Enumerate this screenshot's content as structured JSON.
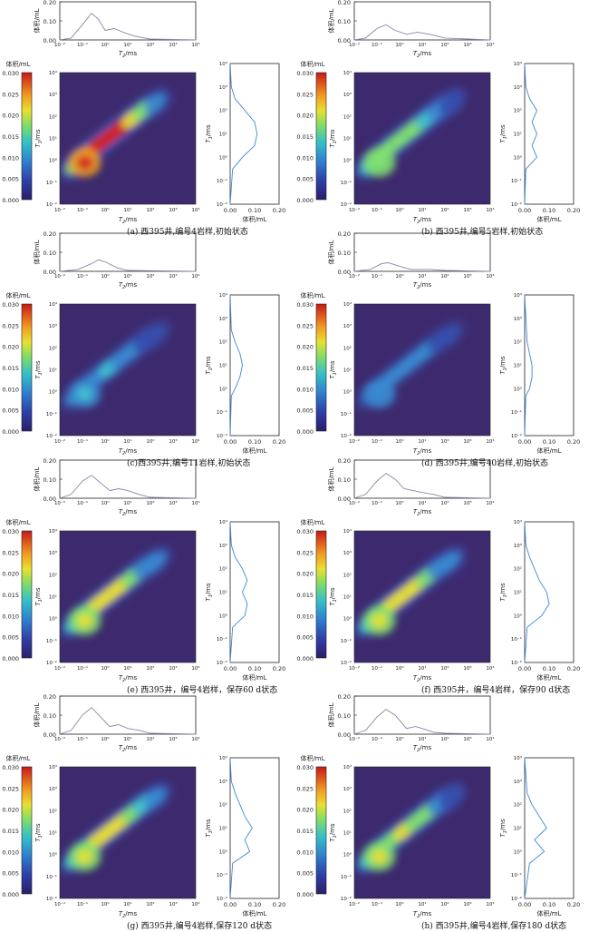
{
  "colorbar": {
    "title": "体积/mL",
    "ticks": [
      "0.030",
      "0.025",
      "0.020",
      "0.015",
      "0.010",
      "0.005",
      "0.000"
    ]
  },
  "axes": {
    "t2_label": "T",
    "t2_sub": "2",
    "t1_label": "T",
    "t1_sub": "1",
    "unit": "/ms",
    "volume_label": "体积/mL",
    "log_ticks": [
      "10⁻²",
      "10⁻¹",
      "10⁰",
      "10¹",
      "10²",
      "10³",
      "10⁴"
    ],
    "side_ticks": [
      "0.00",
      "0.10",
      "0.20"
    ],
    "top_ticks": [
      "0.00",
      "0.10",
      "0.20"
    ]
  },
  "chart_data": [
    {
      "type": "heatmap",
      "caption": "(a) 西395井,编号4岩样,初始状态",
      "intensity": 1.0,
      "t2_distribution": [
        [
          -2,
          0
        ],
        [
          -1.5,
          0.01
        ],
        [
          -1,
          0.08
        ],
        [
          -0.6,
          0.14
        ],
        [
          -0.3,
          0.11
        ],
        [
          0,
          0.05
        ],
        [
          0.4,
          0.06
        ],
        [
          0.8,
          0.04
        ],
        [
          1.3,
          0.02
        ],
        [
          2,
          0.005
        ],
        [
          4,
          0
        ]
      ],
      "t1_distribution": [
        [
          -2,
          0
        ],
        [
          -0.5,
          0.01
        ],
        [
          0,
          0.05
        ],
        [
          0.5,
          0.1
        ],
        [
          1,
          0.11
        ],
        [
          1.5,
          0.1
        ],
        [
          2,
          0.06
        ],
        [
          2.5,
          0.02
        ],
        [
          3,
          0.005
        ],
        [
          4,
          0
        ]
      ]
    },
    {
      "type": "heatmap",
      "caption": "(b) 西395井,编号5岩样,初始状态",
      "intensity": 0.55,
      "t2_distribution": [
        [
          -2,
          0
        ],
        [
          -1.5,
          0.01
        ],
        [
          -1,
          0.06
        ],
        [
          -0.6,
          0.08
        ],
        [
          -0.2,
          0.05
        ],
        [
          0.3,
          0.03
        ],
        [
          0.8,
          0.04
        ],
        [
          1.3,
          0.03
        ],
        [
          2,
          0.01
        ],
        [
          4,
          0
        ]
      ],
      "t1_distribution": [
        [
          -2,
          0
        ],
        [
          -0.5,
          0.005
        ],
        [
          0,
          0.05
        ],
        [
          0.5,
          0.03
        ],
        [
          1,
          0.05
        ],
        [
          1.5,
          0.03
        ],
        [
          2,
          0.05
        ],
        [
          2.5,
          0.02
        ],
        [
          3,
          0.005
        ],
        [
          4,
          0
        ]
      ]
    },
    {
      "type": "heatmap",
      "caption": "(c)西395井,编号11岩样,初始状态",
      "intensity": 0.3,
      "t2_distribution": [
        [
          -2,
          0
        ],
        [
          -1.2,
          0.01
        ],
        [
          -0.6,
          0.04
        ],
        [
          -0.3,
          0.06
        ],
        [
          0,
          0.05
        ],
        [
          0.5,
          0.02
        ],
        [
          1,
          0.005
        ],
        [
          4,
          0
        ]
      ],
      "t1_distribution": [
        [
          -2,
          0
        ],
        [
          -0.3,
          0.005
        ],
        [
          0,
          0.02
        ],
        [
          0.5,
          0.04
        ],
        [
          1,
          0.05
        ],
        [
          1.5,
          0.04
        ],
        [
          2,
          0.02
        ],
        [
          2.5,
          0.005
        ],
        [
          4,
          0
        ]
      ]
    },
    {
      "type": "heatmap",
      "caption": "(d) 西395井,编号40岩样,初始状态",
      "intensity": 0.22,
      "t2_distribution": [
        [
          -2,
          0
        ],
        [
          -1.3,
          0.01
        ],
        [
          -0.8,
          0.04
        ],
        [
          -0.5,
          0.045
        ],
        [
          -0.1,
          0.03
        ],
        [
          0.5,
          0.01
        ],
        [
          1.3,
          0.01
        ],
        [
          2,
          0.005
        ],
        [
          4,
          0
        ]
      ],
      "t1_distribution": [
        [
          -2,
          0
        ],
        [
          -0.3,
          0.005
        ],
        [
          0,
          0.02
        ],
        [
          0.5,
          0.03
        ],
        [
          1,
          0.03
        ],
        [
          1.5,
          0.02
        ],
        [
          2,
          0.01
        ],
        [
          4,
          0
        ]
      ]
    },
    {
      "type": "heatmap",
      "caption": "(e) 西395井，编号4岩样，保存60 d状态",
      "intensity": 0.62,
      "t2_distribution": [
        [
          -2,
          0
        ],
        [
          -1.5,
          0.02
        ],
        [
          -1,
          0.09
        ],
        [
          -0.6,
          0.12
        ],
        [
          -0.2,
          0.08
        ],
        [
          0.2,
          0.04
        ],
        [
          0.6,
          0.05
        ],
        [
          1,
          0.04
        ],
        [
          1.5,
          0.02
        ],
        [
          2,
          0.005
        ],
        [
          4,
          0
        ]
      ],
      "t1_distribution": [
        [
          -2,
          0
        ],
        [
          -0.5,
          0.01
        ],
        [
          0,
          0.06
        ],
        [
          0.5,
          0.07
        ],
        [
          1,
          0.05
        ],
        [
          1.5,
          0.07
        ],
        [
          2,
          0.05
        ],
        [
          2.5,
          0.02
        ],
        [
          3,
          0.005
        ],
        [
          4,
          0
        ]
      ]
    },
    {
      "type": "heatmap",
      "caption": "(f) 西395井，编号4岩样，保存90 d状态",
      "intensity": 0.62,
      "t2_distribution": [
        [
          -2,
          0
        ],
        [
          -1.5,
          0.02
        ],
        [
          -1,
          0.09
        ],
        [
          -0.6,
          0.13
        ],
        [
          -0.2,
          0.1
        ],
        [
          0.2,
          0.05
        ],
        [
          0.6,
          0.04
        ],
        [
          1,
          0.03
        ],
        [
          1.5,
          0.02
        ],
        [
          2,
          0.005
        ],
        [
          4,
          0
        ]
      ],
      "t1_distribution": [
        [
          -2,
          0
        ],
        [
          -0.5,
          0.01
        ],
        [
          0,
          0.07
        ],
        [
          0.5,
          0.1
        ],
        [
          1,
          0.09
        ],
        [
          1.5,
          0.06
        ],
        [
          2,
          0.04
        ],
        [
          2.5,
          0.02
        ],
        [
          3,
          0.005
        ],
        [
          4,
          0
        ]
      ]
    },
    {
      "type": "heatmap",
      "caption": "(g) 西395井,编号4岩样,保存120 d状态",
      "intensity": 0.68,
      "t2_distribution": [
        [
          -2,
          0
        ],
        [
          -1.5,
          0.02
        ],
        [
          -1,
          0.1
        ],
        [
          -0.6,
          0.14
        ],
        [
          -0.2,
          0.09
        ],
        [
          0.2,
          0.04
        ],
        [
          0.6,
          0.05
        ],
        [
          1,
          0.03
        ],
        [
          1.5,
          0.02
        ],
        [
          2,
          0.005
        ],
        [
          4,
          0
        ]
      ],
      "t1_distribution": [
        [
          -2,
          0
        ],
        [
          -0.5,
          0.01
        ],
        [
          0,
          0.08
        ],
        [
          0.5,
          0.06
        ],
        [
          1,
          0.09
        ],
        [
          1.5,
          0.06
        ],
        [
          2,
          0.04
        ],
        [
          2.5,
          0.02
        ],
        [
          3,
          0.005
        ],
        [
          4,
          0
        ]
      ]
    },
    {
      "type": "heatmap",
      "caption": "(h) 西395井,编号4岩样,保存180 d状态",
      "intensity": 0.6,
      "t2_distribution": [
        [
          -2,
          0
        ],
        [
          -1.5,
          0.02
        ],
        [
          -1,
          0.09
        ],
        [
          -0.6,
          0.13
        ],
        [
          -0.2,
          0.1
        ],
        [
          0.3,
          0.03
        ],
        [
          0.7,
          0.04
        ],
        [
          1,
          0.03
        ],
        [
          1.5,
          0.01
        ],
        [
          2,
          0.005
        ],
        [
          4,
          0
        ]
      ],
      "t1_distribution": [
        [
          -2,
          0
        ],
        [
          -0.5,
          0.02
        ],
        [
          0,
          0.08
        ],
        [
          0.5,
          0.04
        ],
        [
          1,
          0.09
        ],
        [
          1.5,
          0.06
        ],
        [
          2,
          0.03
        ],
        [
          2.5,
          0.01
        ],
        [
          4,
          0
        ]
      ]
    }
  ]
}
